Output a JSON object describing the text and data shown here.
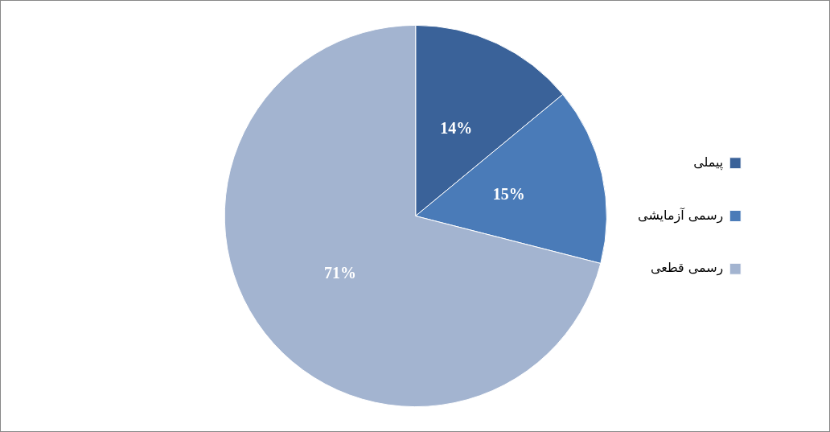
{
  "chart_data": {
    "type": "pie",
    "categories": [
      "پیملی",
      "رسمی آزمایشی",
      "رسمی قطعی"
    ],
    "values": [
      14,
      15,
      71
    ],
    "colors": [
      "#3a6299",
      "#4a7bb8",
      "#a3b4d0"
    ],
    "value_labels": [
      "14%",
      "15%",
      "71%"
    ],
    "legend": "right"
  }
}
